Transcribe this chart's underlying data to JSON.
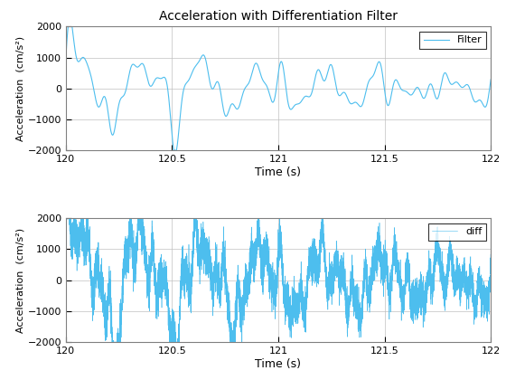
{
  "title": "Acceleration with Differentiation Filter",
  "xlabel": "Time (s)",
  "ylabel": "Acceleration  (cm/s²)",
  "xlim": [
    120,
    122
  ],
  "ylim": [
    -2000,
    2000
  ],
  "yticks": [
    -2000,
    -1000,
    0,
    1000,
    2000
  ],
  "xticks": [
    120,
    120.5,
    121,
    121.5,
    122
  ],
  "line_color": "#4DBEEE",
  "legend1": "Filter",
  "legend2": "diff",
  "bg_color": "white",
  "grid_color": "#C0C0C0",
  "seed": 42,
  "t_start": 120,
  "t_end": 122
}
